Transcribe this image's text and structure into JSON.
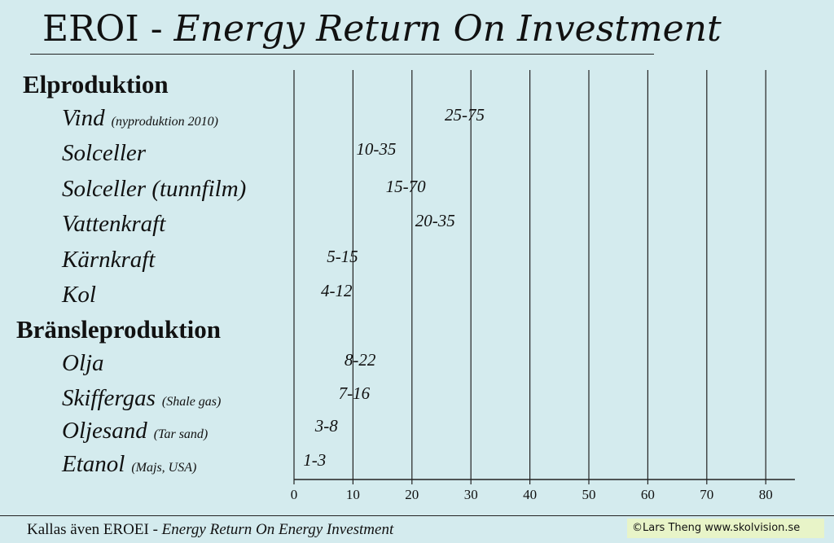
{
  "title": {
    "main": "EROI - ",
    "sub": "Energy Return On Investment"
  },
  "groups": [
    {
      "label": "Elproduktion"
    },
    {
      "label": "Bränsleproduktion"
    }
  ],
  "rows": [
    {
      "label": "Vind",
      "note": "(nyproduktion 2010)"
    },
    {
      "label": "Solceller",
      "note": ""
    },
    {
      "label": "Solceller (tunnfilm)",
      "note": ""
    },
    {
      "label": "Vattenkraft",
      "note": ""
    },
    {
      "label": "Kärnkraft",
      "note": ""
    },
    {
      "label": "Kol",
      "note": ""
    },
    {
      "label": "Olja",
      "note": ""
    },
    {
      "label": "Skiffergas",
      "note": "(Shale gas)"
    },
    {
      "label": "Oljesand",
      "note": "(Tar sand)"
    },
    {
      "label": "Etanol",
      "note": "(Majs, USA)"
    }
  ],
  "chart_data": {
    "type": "range",
    "categories": [
      "Vind",
      "Solceller",
      "Solceller (tunnfilm)",
      "Vattenkraft",
      "Kärnkraft",
      "Kol",
      "Olja",
      "Skiffergas",
      "Oljesand",
      "Etanol"
    ],
    "ranges": [
      [
        25,
        75
      ],
      [
        10,
        35
      ],
      [
        15,
        70
      ],
      [
        20,
        35
      ],
      [
        5,
        15
      ],
      [
        4,
        12
      ],
      [
        8,
        22
      ],
      [
        7,
        16
      ],
      [
        3,
        8
      ],
      [
        1,
        3
      ]
    ],
    "range_labels": [
      "25-75",
      "10-35",
      "15-70",
      "20-35",
      "5-15",
      "4-12",
      "8-22",
      "7-16",
      "3-8",
      "1-3"
    ],
    "xticks": [
      0,
      10,
      20,
      30,
      40,
      50,
      60,
      70,
      80
    ],
    "xlim": [
      0,
      80
    ],
    "grid": true
  },
  "footer": {
    "main": "Kallas även EROEI - ",
    "sub": "Energy Return On Energy Investment"
  },
  "copyright": "©Lars Theng    www.skolvision.se"
}
